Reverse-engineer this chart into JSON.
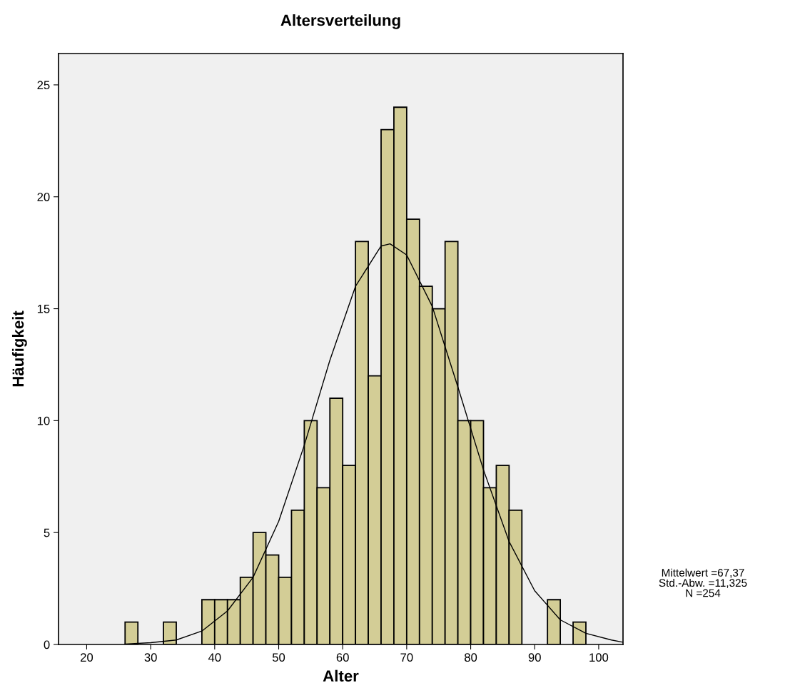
{
  "chart_data": {
    "type": "histogram",
    "title": "Altersverteilung",
    "xlabel": "Alter",
    "ylabel": "Häufigkeit",
    "series": [
      {
        "color": "#d3cd96",
        "bins": [
          26,
          28,
          30,
          32,
          34,
          36,
          38,
          40,
          42,
          44,
          46,
          48,
          50,
          52,
          54,
          56,
          58,
          60,
          62,
          64,
          66,
          68,
          70,
          72,
          74,
          76,
          78,
          80,
          82,
          84,
          86,
          88,
          90,
          92,
          94,
          96,
          98
        ],
        "values": [
          1,
          0,
          0,
          1,
          0,
          0,
          2,
          2,
          2,
          3,
          5,
          4,
          3,
          6,
          10,
          7,
          11,
          8,
          18,
          12,
          23,
          24,
          19,
          16,
          15,
          18,
          10,
          10,
          7,
          8,
          6,
          0,
          0,
          2,
          0,
          1
        ]
      },
      {
        "type": "line",
        "color": "#000000",
        "x": [
          26,
          30,
          34,
          38,
          42,
          46,
          50,
          54,
          58,
          62,
          66,
          67.4,
          70,
          74,
          78,
          82,
          86,
          90,
          94,
          98,
          102,
          103.8
        ],
        "values": [
          0.02,
          0.08,
          0.2,
          0.6,
          1.5,
          3.0,
          5.5,
          8.9,
          12.7,
          16.0,
          17.8,
          17.9,
          17.4,
          15.1,
          11.5,
          7.8,
          4.6,
          2.4,
          1.1,
          0.5,
          0.2,
          0.1
        ]
      }
    ],
    "xlim": [
      15.6,
      103.8
    ],
    "xticks": [
      20,
      30,
      40,
      50,
      60,
      70,
      80,
      90,
      100
    ],
    "ylim": [
      0,
      26.4
    ],
    "yticks": [
      0,
      5,
      10,
      15,
      20,
      25
    ],
    "grid": false,
    "legend": false,
    "annotations": [
      "Mittelwert =67,37\nStd.-Abw. =11,325\nN =254"
    ]
  }
}
